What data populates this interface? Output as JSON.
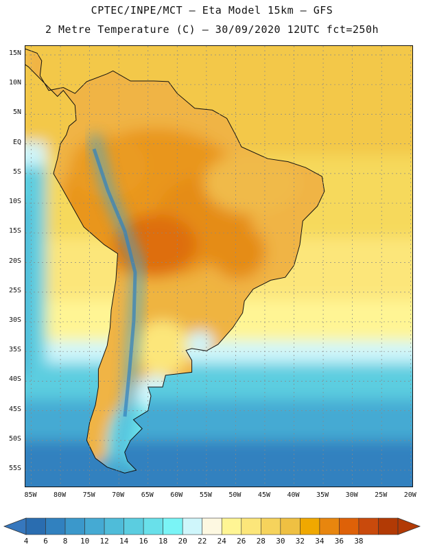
{
  "header": {
    "line1": "CPTEC/INPE/MCT –  Eta Model 15km – GFS",
    "line2": "2 Metre Temperature (C) – 30/09/2020 12UTC fct=250h"
  },
  "map": {
    "lat_labels": [
      "15N",
      "10N",
      "5N",
      "EQ",
      "5S",
      "10S",
      "15S",
      "20S",
      "25S",
      "30S",
      "35S",
      "40S",
      "45S",
      "50S",
      "55S"
    ],
    "lon_labels": [
      "85W",
      "80W",
      "75W",
      "70W",
      "65W",
      "60W",
      "55W",
      "50W",
      "45W",
      "40W",
      "35W",
      "30W",
      "25W",
      "20W"
    ],
    "lat_values": [
      15,
      10,
      5,
      0,
      -5,
      -10,
      -15,
      -20,
      -25,
      -30,
      -35,
      -40,
      -45,
      -50,
      -55
    ],
    "lon_values": [
      -85,
      -80,
      -75,
      -70,
      -65,
      -60,
      -55,
      -50,
      -45,
      -40,
      -35,
      -30,
      -25,
      -20
    ],
    "extent": {
      "lon_min": -86,
      "lon_max": -19.5,
      "lat_max": 16.5,
      "lat_min": -58
    }
  },
  "colorbar": {
    "labels": [
      "4",
      "6",
      "8",
      "10",
      "12",
      "14",
      "16",
      "18",
      "20",
      "22",
      "24",
      "26",
      "28",
      "30",
      "32",
      "34",
      "36",
      "38"
    ],
    "colors": [
      "#2a6db0",
      "#3181bf",
      "#3b98cb",
      "#45aad3",
      "#4fbcd9",
      "#5bcde0",
      "#69e0ea",
      "#7af4f6",
      "#cff6fb",
      "#fdf8e1",
      "#fff594",
      "#fce67a",
      "#f6d35c",
      "#efc042",
      "#f0a800",
      "#e8860e",
      "#de6108",
      "#c94a0c",
      "#b23a05"
    ],
    "under_color": "#3677bd",
    "over_color": "#b23a05"
  }
}
